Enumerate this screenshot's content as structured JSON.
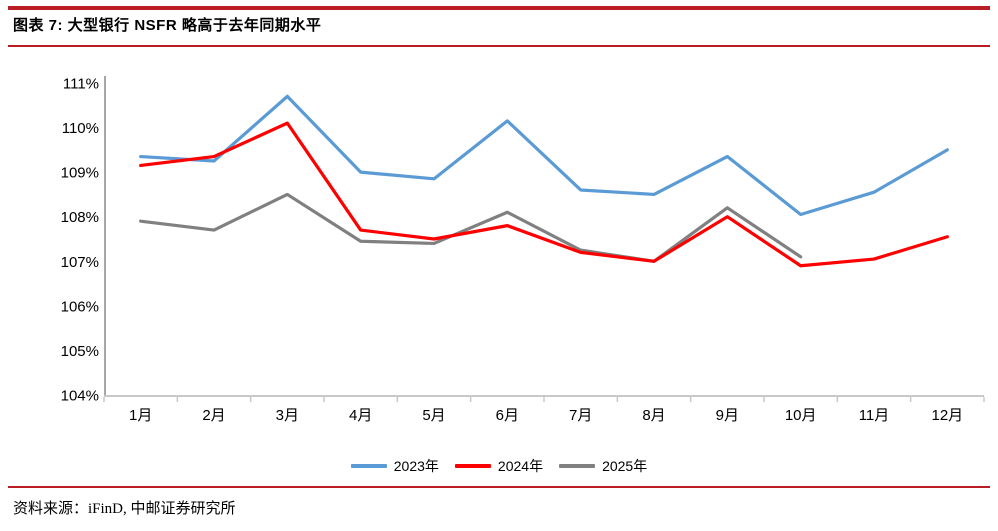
{
  "header": {
    "title": "图表 7: 大型银行 NSFR 略高于去年同期水平"
  },
  "footer": {
    "source": "资料来源：iFinD, 中邮证券研究所"
  },
  "colors": {
    "accent_red": "#B91C22",
    "axis_y": "#A6A6A6",
    "axis_x": "#C8C8C8",
    "tick": "#C8C8C8",
    "label": "#000000"
  },
  "chart_data": {
    "type": "line",
    "title": "大型银行 NSFR 略高于去年同期水平",
    "categories": [
      "1月",
      "2月",
      "3月",
      "4月",
      "5月",
      "6月",
      "7月",
      "8月",
      "9月",
      "10月",
      "11月",
      "12月"
    ],
    "series": [
      {
        "name": "2023年",
        "color": "#5B9BD5",
        "values": [
          109.35,
          109.25,
          110.7,
          109.0,
          108.85,
          110.15,
          108.6,
          108.5,
          109.35,
          108.05,
          108.55,
          109.5
        ]
      },
      {
        "name": "2024年",
        "color": "#FF0000",
        "values": [
          109.15,
          109.35,
          110.1,
          107.7,
          107.5,
          107.8,
          107.2,
          107.0,
          108.0,
          106.9,
          107.05,
          107.55
        ]
      },
      {
        "name": "2025年",
        "color": "#808080",
        "values": [
          107.9,
          107.7,
          108.5,
          107.45,
          107.4,
          108.1,
          107.25,
          107.0,
          108.2,
          107.1
        ]
      }
    ],
    "ylim": [
      104,
      111
    ],
    "ytick_labels": [
      "111%",
      "110%",
      "109%",
      "108%",
      "107%",
      "106%",
      "105%",
      "104%"
    ],
    "ytick_values": [
      111,
      110,
      109,
      108,
      107,
      106,
      105,
      104
    ],
    "xlabel": "",
    "ylabel": "",
    "grid": false,
    "legend_position": "bottom"
  }
}
